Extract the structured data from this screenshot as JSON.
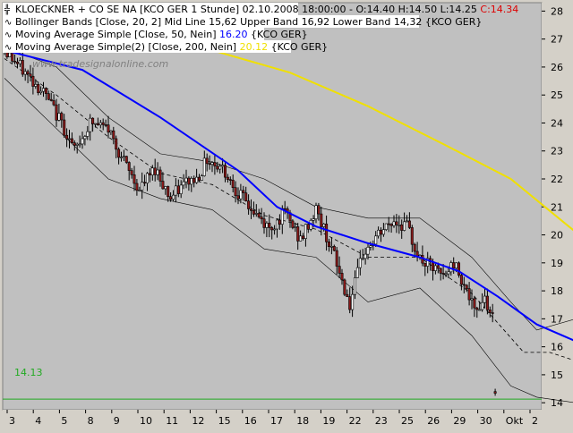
{
  "colors": {
    "plot_bg": "#c0c0c0",
    "frame_bg": "#ffffff",
    "candle": "#000000",
    "up_body": "#ffffff",
    "down_body": "#8b1a1a",
    "ma50": "#0000ff",
    "ma200": "#f0e000",
    "bollinger": "#000000",
    "support": "#22aa22",
    "last_price": "#dd0000"
  },
  "legend": {
    "title_line": "KLOECKNER + CO SE NA [KCO GER  1 Stunde] 02.10.2008 18:00:00 - O:14.40 H:14.50 L:14.25",
    "title_close": "C:14.34",
    "bb_line": "Bollinger Bands [Close, 20, 2] Mid Line 15,62 Upper Band 16,92 Lower Band 14,32 {KCO GER}",
    "ma50_prefix": "Moving Average Simple [Close, 50, Nein]",
    "ma50_value": "16.20",
    "ma50_suffix": "{KCO GER}",
    "ma200_prefix": "Moving Average Simple(2) [Close, 200, Nein]",
    "ma200_value": "20.12",
    "ma200_suffix": "{KCO GER}",
    "watermark": "www.tradesignalonline.com"
  },
  "chart_data": {
    "type": "candlestick",
    "x_tick_labels": [
      "3",
      "4",
      "5",
      "8",
      "9",
      "10",
      "11",
      "12",
      "15",
      "16",
      "17",
      "18",
      "19",
      "22",
      "23",
      "25",
      "26",
      "29",
      "30",
      "Okt",
      "2"
    ],
    "y_tick_labels": [
      "14",
      "15",
      "16",
      "17",
      "18",
      "19",
      "20",
      "21",
      "22",
      "23",
      "24",
      "25",
      "26",
      "27",
      "28"
    ],
    "ylim": [
      13.75,
      28.3
    ],
    "n_bars": 190,
    "price_path": [
      [
        0,
        26.6
      ],
      [
        8,
        25.8
      ],
      [
        15,
        25.1
      ],
      [
        22,
        24.0
      ],
      [
        27,
        23.0
      ],
      [
        33,
        24.0
      ],
      [
        40,
        23.8
      ],
      [
        46,
        22.6
      ],
      [
        52,
        21.6
      ],
      [
        58,
        22.4
      ],
      [
        64,
        21.3
      ],
      [
        70,
        21.9
      ],
      [
        74,
        22.0
      ],
      [
        78,
        22.7
      ],
      [
        84,
        22.4
      ],
      [
        90,
        21.5
      ],
      [
        96,
        20.8
      ],
      [
        102,
        20.2
      ],
      [
        108,
        20.8
      ],
      [
        114,
        19.8
      ],
      [
        120,
        20.9
      ],
      [
        126,
        19.5
      ],
      [
        133,
        17.5
      ],
      [
        138,
        19.3
      ],
      [
        145,
        20.1
      ],
      [
        150,
        20.5
      ],
      [
        155,
        20.3
      ],
      [
        160,
        19.1
      ],
      [
        165,
        18.8
      ],
      [
        169,
        18.5
      ],
      [
        173,
        19.0
      ],
      [
        177,
        18.3
      ],
      [
        181,
        17.2
      ],
      [
        185,
        17.8
      ],
      [
        189,
        16.8
      ]
    ],
    "candles": [],
    "ma50": [
      [
        0,
        26.6
      ],
      [
        30,
        25.9
      ],
      [
        60,
        24.2
      ],
      [
        90,
        22.3
      ],
      [
        105,
        21.0
      ],
      [
        120,
        20.3
      ],
      [
        140,
        19.7
      ],
      [
        160,
        19.2
      ],
      [
        175,
        18.7
      ],
      [
        190,
        17.8
      ],
      [
        205,
        16.8
      ],
      [
        220,
        16.2
      ]
    ],
    "ma200": [
      [
        40,
        27.1
      ],
      [
        80,
        26.6
      ],
      [
        110,
        25.8
      ],
      [
        140,
        24.6
      ],
      [
        170,
        23.2
      ],
      [
        195,
        22.0
      ],
      [
        220,
        20.1
      ]
    ],
    "bollinger_mid": [
      [
        0,
        26.3
      ],
      [
        20,
        25.0
      ],
      [
        40,
        23.5
      ],
      [
        60,
        22.2
      ],
      [
        80,
        21.8
      ],
      [
        100,
        20.7
      ],
      [
        120,
        20.2
      ],
      [
        140,
        19.2
      ],
      [
        160,
        19.2
      ],
      [
        180,
        17.9
      ],
      [
        200,
        15.8
      ],
      [
        210,
        15.8
      ],
      [
        220,
        15.5
      ]
    ],
    "bollinger_upper": [
      [
        0,
        26.7
      ],
      [
        20,
        26.0
      ],
      [
        40,
        24.2
      ],
      [
        60,
        22.9
      ],
      [
        80,
        22.6
      ],
      [
        100,
        22.0
      ],
      [
        120,
        21.0
      ],
      [
        140,
        20.6
      ],
      [
        160,
        20.6
      ],
      [
        180,
        19.2
      ],
      [
        195,
        17.6
      ],
      [
        205,
        16.6
      ],
      [
        220,
        17.0
      ]
    ],
    "bollinger_lower": [
      [
        0,
        25.6
      ],
      [
        20,
        23.8
      ],
      [
        40,
        22.0
      ],
      [
        60,
        21.3
      ],
      [
        80,
        20.9
      ],
      [
        100,
        19.5
      ],
      [
        120,
        19.2
      ],
      [
        140,
        17.6
      ],
      [
        160,
        18.1
      ],
      [
        180,
        16.4
      ],
      [
        195,
        14.6
      ],
      [
        205,
        14.2
      ],
      [
        220,
        14.0
      ]
    ],
    "support_level": 14.13,
    "support_label": "14.13"
  }
}
